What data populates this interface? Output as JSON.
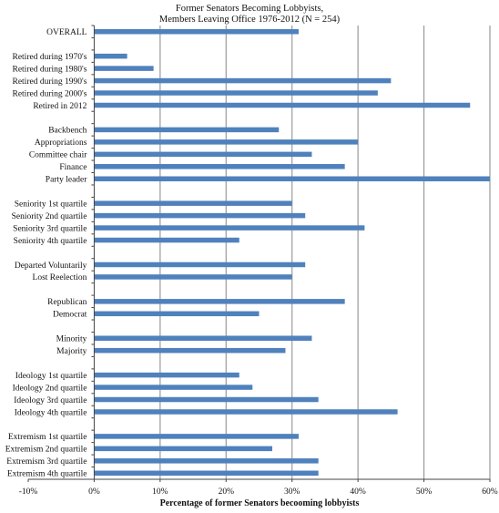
{
  "chart_data": {
    "type": "bar",
    "orientation": "horizontal",
    "title": [
      "Former Senators Becoming Lobbyists,",
      "Members Leaving Office 1976-2012 (N = 254)"
    ],
    "xlabel": "Percentage of former Senators becooming lobbyists",
    "ylabel": "",
    "xlim": [
      -10,
      60
    ],
    "xticks": [
      -10,
      0,
      10,
      20,
      30,
      40,
      50,
      60
    ],
    "xtick_labels": [
      "-10%",
      "0%",
      "10%",
      "20%",
      "30%",
      "40%",
      "50%",
      "60%"
    ],
    "grid": "vertical",
    "bar_color": "#4f81bd",
    "categories": [
      "OVERALL",
      "",
      "Retired during 1970's",
      "Retired during 1980's",
      "Retired during 1990's",
      "Retired during 2000's",
      "Retired in 2012",
      "",
      "Backbench",
      "Appropriations",
      "Committee chair",
      "Finance",
      "Party leader",
      "",
      "Seniority 1st quartile",
      "Seniority 2nd quartile",
      "Seniority 3rd quartile",
      "Seniority 4th quartile",
      "",
      "Departed Voluntarily",
      "Lost Reelection",
      "",
      "Republican",
      "Democrat",
      "",
      "Minority",
      "Majority",
      "",
      "Ideology 1st quartile",
      "Ideology 2nd quartile",
      "Ideology 3rd quartile",
      "Ideology 4th quartile",
      "",
      "Extremism 1st quartile",
      "Extremism 2nd quartile",
      "Extremism 3rd quartile",
      "Extremism 4th quartile"
    ],
    "values": [
      31,
      null,
      5,
      9,
      45,
      43,
      57,
      null,
      28,
      40,
      33,
      38,
      60,
      null,
      30,
      32,
      41,
      22,
      null,
      32,
      30,
      null,
      38,
      25,
      null,
      33,
      29,
      null,
      22,
      24,
      34,
      46,
      null,
      31,
      27,
      34,
      34
    ]
  }
}
